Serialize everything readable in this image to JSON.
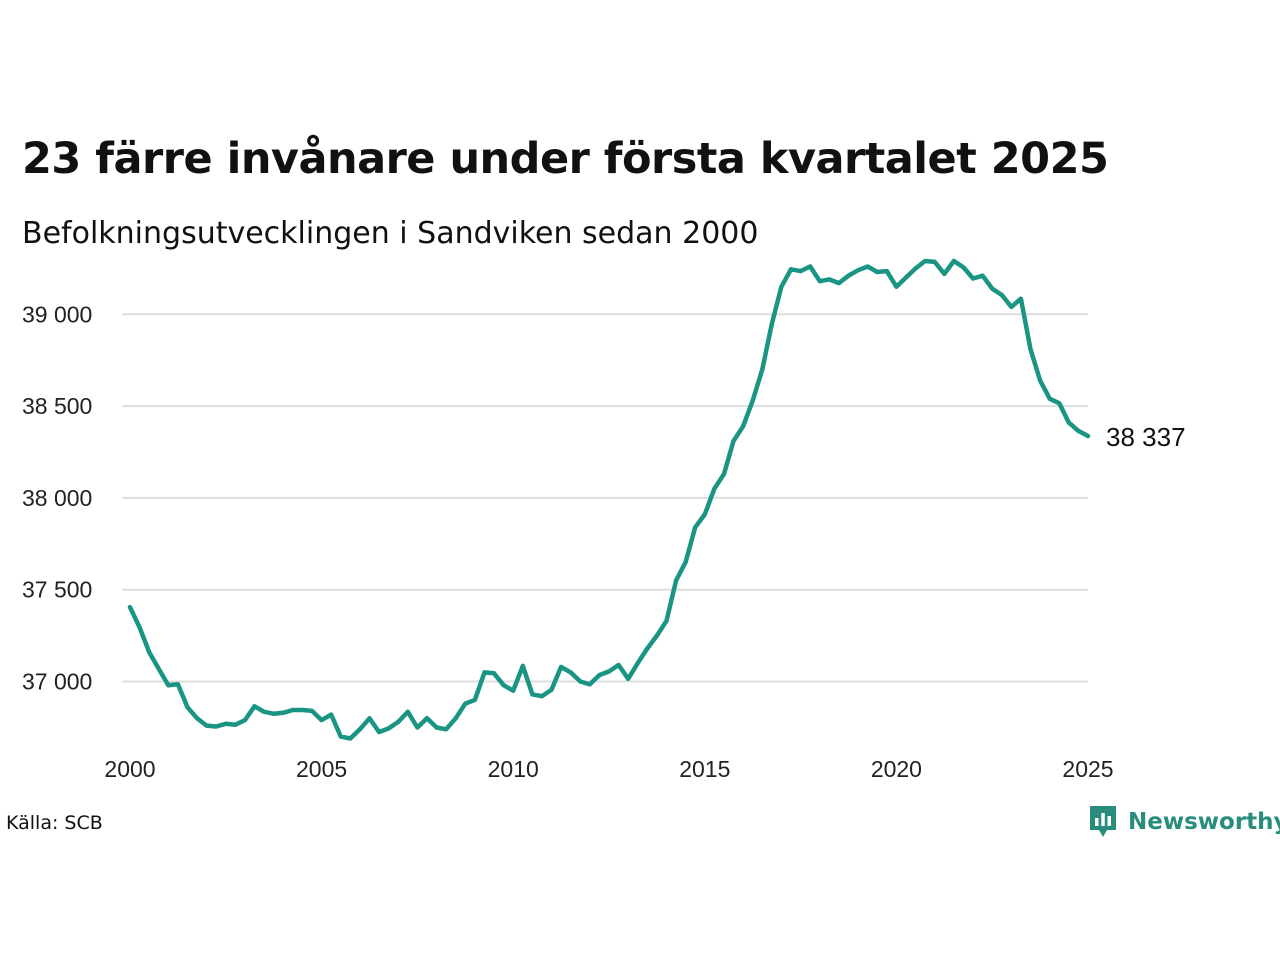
{
  "header": {
    "title": "23 färre invånare under första kvartalet 2025",
    "subtitle": "Befolkningsutvecklingen i Sandviken sedan 2000"
  },
  "footer": {
    "source": "Källa: SCB",
    "brand": "Newsworthy"
  },
  "colors": {
    "line": "#1a9483",
    "grid": "#dddddd",
    "brand": "#2a8c7c"
  },
  "chart_data": {
    "type": "line",
    "title": "23 färre invånare under första kvartalet 2025",
    "subtitle": "Befolkningsutvecklingen i Sandviken sedan 2000",
    "xlabel": "",
    "ylabel": "",
    "xlim": [
      2000,
      2025
    ],
    "ylim": [
      36600,
      39350
    ],
    "x_ticks": [
      2000,
      2005,
      2010,
      2015,
      2020,
      2025
    ],
    "x_tick_labels": [
      "2000",
      "2005",
      "2010",
      "2015",
      "2020",
      "2025"
    ],
    "y_ticks": [
      37000,
      37500,
      38000,
      38500,
      39000
    ],
    "y_tick_labels": [
      "37 000",
      "37 500",
      "38 000",
      "38 500",
      "39 000"
    ],
    "grid": true,
    "end_label": "38 337",
    "series": [
      {
        "x": [
          2000.0,
          2000.25,
          2000.5,
          2000.75,
          2001.0,
          2001.25,
          2001.5,
          2001.75,
          2002.0,
          2002.25,
          2002.5,
          2002.75,
          2003.0,
          2003.25,
          2003.5,
          2003.75,
          2004.0,
          2004.25,
          2004.5,
          2004.75,
          2005.0,
          2005.25,
          2005.5,
          2005.75,
          2006.0,
          2006.25,
          2006.5,
          2006.75,
          2007.0,
          2007.25,
          2007.5,
          2007.75,
          2008.0,
          2008.25,
          2008.5,
          2008.75,
          2009.0,
          2009.25,
          2009.5,
          2009.75,
          2010.0,
          2010.25,
          2010.5,
          2010.75,
          2011.0,
          2011.25,
          2011.5,
          2011.75,
          2012.0,
          2012.25,
          2012.5,
          2012.75,
          2013.0,
          2013.25,
          2013.5,
          2013.75,
          2014.0,
          2014.25,
          2014.5,
          2014.75,
          2015.0,
          2015.25,
          2015.5,
          2015.75,
          2016.0,
          2016.25,
          2016.5,
          2016.75,
          2017.0,
          2017.25,
          2017.5,
          2017.75,
          2018.0,
          2018.25,
          2018.5,
          2018.75,
          2019.0,
          2019.25,
          2019.5,
          2019.75,
          2020.0,
          2020.25,
          2020.5,
          2020.75,
          2021.0,
          2021.25,
          2021.5,
          2021.75,
          2022.0,
          2022.25,
          2022.5,
          2022.75,
          2023.0,
          2023.25,
          2023.5,
          2023.75,
          2024.0,
          2024.25,
          2024.5,
          2024.75,
          2025.0
        ],
        "values": [
          37405,
          37295,
          37160,
          37070,
          36980,
          36985,
          36860,
          36800,
          36760,
          36755,
          36770,
          36765,
          36790,
          36865,
          36835,
          36825,
          36830,
          36845,
          36845,
          36840,
          36790,
          36820,
          36700,
          36690,
          36740,
          36800,
          36725,
          36745,
          36780,
          36835,
          36750,
          36800,
          36750,
          36740,
          36800,
          36880,
          36900,
          37050,
          37045,
          36980,
          36950,
          37085,
          36930,
          36920,
          36955,
          37080,
          37050,
          37000,
          36985,
          37035,
          37055,
          37090,
          37015,
          37100,
          37180,
          37250,
          37330,
          37550,
          37650,
          37840,
          37910,
          38050,
          38130,
          38310,
          38390,
          38530,
          38700,
          38950,
          39150,
          39245,
          39235,
          39260,
          39180,
          39190,
          39170,
          39210,
          39240,
          39260,
          39230,
          39235,
          39150,
          39200,
          39250,
          39290,
          39285,
          39220,
          39290,
          39255,
          39195,
          39210,
          39140,
          39105,
          39040,
          39085,
          38810,
          38640,
          38540,
          38515,
          38410,
          38365,
          38337
        ]
      }
    ]
  }
}
